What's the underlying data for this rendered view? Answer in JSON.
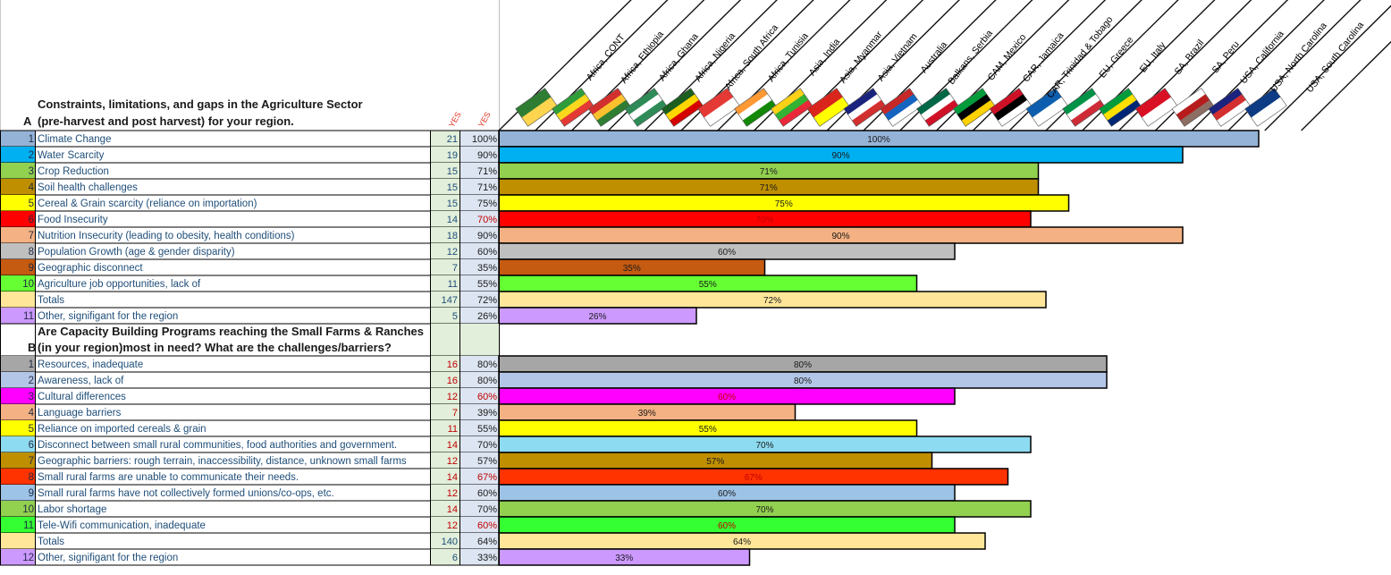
{
  "chart_data": {
    "type": "bar",
    "orientation": "horizontal",
    "title": "",
    "xlabel": "",
    "ylabel": "",
    "xlim": [
      0,
      100
    ],
    "column_headers": [
      "YES",
      "YES"
    ],
    "regions": [
      "Africa, CONT",
      "Africa, Ethiopia",
      "Africa, Ghana",
      "Africa, Nigeria",
      "Africa, South Africa",
      "Africa, Tunisia",
      "Asia, India",
      "Asia, Myanmar",
      "Asia, Vietnam",
      "Australia",
      "Balkans, Serbia",
      "CAM, Mexico",
      "CAR, Jamaica",
      "CAR, Trinidad & Tobago",
      "EU, Greece",
      "EU, Italy",
      "SA, Brazil",
      "SA, Peru",
      "USA, California",
      "USA, North Carolina",
      "USA, South Carolina"
    ],
    "sections": [
      {
        "letter": "A",
        "title_lines": [
          "Constraints, limitations, and gaps in the Agriculture Sector",
          "(pre-harvest and post harvest) for your region."
        ],
        "rows": [
          {
            "num": "1",
            "label": "Climate Change",
            "yes": 21,
            "pct": 100,
            "pct_label": "100%",
            "color": "#95b3d7"
          },
          {
            "num": "2",
            "label": "Water Scarcity",
            "yes": 19,
            "pct": 90,
            "pct_label": "90%",
            "color": "#00b0f0"
          },
          {
            "num": "3",
            "label": "Crop Reduction",
            "yes": 15,
            "pct": 71,
            "pct_label": "71%",
            "color": "#92d050"
          },
          {
            "num": "4",
            "label": "Soil health challenges",
            "yes": 15,
            "pct": 71,
            "pct_label": "71%",
            "color": "#bf8f00"
          },
          {
            "num": "5",
            "label": "Cereal & Grain scarcity (reliance on importation)",
            "yes": 15,
            "pct": 75,
            "pct_label": "75%",
            "color": "#ffff00"
          },
          {
            "num": "6",
            "label": "Food Insecurity",
            "yes": 14,
            "pct": 70,
            "pct_label": "70%",
            "color": "#ff0000"
          },
          {
            "num": "7",
            "label": "Nutrition Insecurity (leading to obesity, health conditions)",
            "yes": 18,
            "pct": 90,
            "pct_label": "90%",
            "color": "#f4b183"
          },
          {
            "num": "8",
            "label": "Population Growth (age & gender disparity)",
            "yes": 12,
            "pct": 60,
            "pct_label": "60%",
            "color": "#bfbfbf"
          },
          {
            "num": "9",
            "label": "Geographic disconnect",
            "yes": 7,
            "pct": 35,
            "pct_label": "35%",
            "color": "#c55a11"
          },
          {
            "num": "10",
            "label": "Agriculture job opportunities, lack of",
            "yes": 11,
            "pct": 55,
            "pct_label": "55%",
            "color": "#66ff33"
          },
          {
            "num": "",
            "label": "Totals",
            "yes": 147,
            "pct": 72,
            "pct_label": "72%",
            "color": "#ffe699",
            "is_total": true
          },
          {
            "num": "11",
            "label": "Other, signifigant for the region",
            "yes": 5,
            "pct": 26,
            "pct_label": "26%",
            "color": "#cc99ff"
          }
        ]
      },
      {
        "letter": "B",
        "title_lines": [
          "Are Capacity Building Programs reaching the Small Farms & Ranches",
          "(in your region)most in need? What are the challenges/barriers?"
        ],
        "rows": [
          {
            "num": "1",
            "label": "Resources,  inadequate",
            "yes": 16,
            "pct": 80,
            "pct_label": "80%",
            "color": "#a6a6a6"
          },
          {
            "num": "2",
            "label": "Awareness, lack of",
            "yes": 16,
            "pct": 80,
            "pct_label": "80%",
            "color": "#b4c6e7"
          },
          {
            "num": "3",
            "label": "Cultural differences",
            "yes": 12,
            "pct": 60,
            "pct_label": "60%",
            "color": "#ff00ff"
          },
          {
            "num": "4",
            "label": "Language barriers",
            "yes": 7,
            "pct": 39,
            "pct_label": "39%",
            "color": "#f4b183"
          },
          {
            "num": "5",
            "label": "Reliance on imported cereals & grain",
            "yes": 11,
            "pct": 55,
            "pct_label": "55%",
            "color": "#ffff00"
          },
          {
            "num": "6",
            "label": "Disconnect between small rural communities, food authorities and government.",
            "yes": 14,
            "pct": 70,
            "pct_label": "70%",
            "color": "#8ddbf0"
          },
          {
            "num": "7",
            "label": " Geographic barriers: rough terrain, inaccessibility, distance, unknown small farms",
            "yes": 12,
            "pct": 57,
            "pct_label": "57%",
            "color": "#bf8f00"
          },
          {
            "num": "8",
            "label": "Small rural farms are unable to communicate their needs.",
            "yes": 14,
            "pct": 67,
            "pct_label": "67%",
            "color": "#ff3300"
          },
          {
            "num": "9",
            "label": "Small rural farms have not collectively formed unions/co-ops, etc.",
            "yes": 12,
            "pct": 60,
            "pct_label": "60%",
            "color": "#9dc3e6"
          },
          {
            "num": "10",
            "label": "Labor shortage",
            "yes": 14,
            "pct": 70,
            "pct_label": "70%",
            "color": "#92d050"
          },
          {
            "num": "11",
            "label": "Tele-Wifi communication, inadequate",
            "yes": 12,
            "pct": 60,
            "pct_label": "60%",
            "color": "#33ff33"
          },
          {
            "num": "",
            "label": "Totals",
            "yes": 140,
            "pct": 64,
            "pct_label": "64%",
            "color": "#ffe699",
            "is_total": true
          },
          {
            "num": "12",
            "label": "Other, signifigant for the region",
            "yes": 6,
            "pct": 33,
            "pct_label": "33%",
            "color": "#cc99ff"
          }
        ]
      }
    ]
  }
}
